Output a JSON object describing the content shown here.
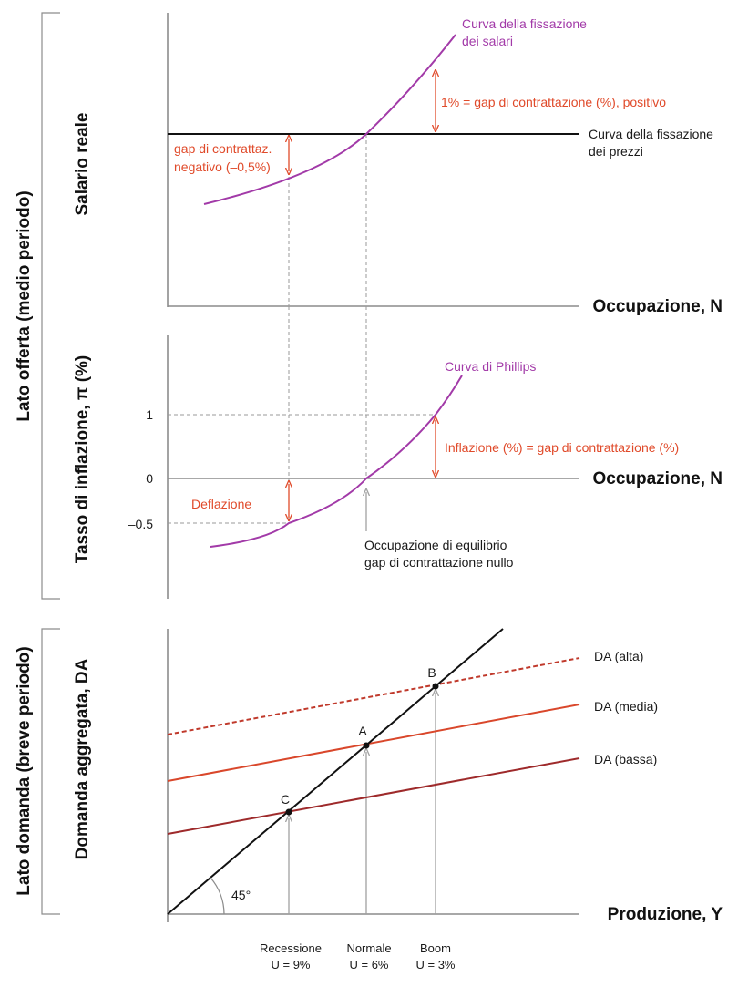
{
  "chart_data": [
    {
      "type": "line",
      "panel": "wage-price-setting",
      "ylabel": "Salario reale",
      "xlabel": "Occupazione, N",
      "series": [
        {
          "name": "Curva della fissazione dei salari",
          "shape": "upward convex curve"
        },
        {
          "name": "Curva della fissazione dei prezzi",
          "shape": "horizontal line"
        }
      ],
      "annotations": {
        "wage_curve": [
          "Curva della fissazione",
          "dei salari"
        ],
        "price_curve": [
          "Curva della fissazione",
          "dei prezzi"
        ],
        "positive_gap": "1% = gap di contrattazione (%), positivo",
        "negative_gap": [
          "gap di contrattaz.",
          "negativo (–0,5%)"
        ]
      }
    },
    {
      "type": "line",
      "panel": "phillips",
      "ylabel": "Tasso di inflazione, π (%)",
      "xlabel": "Occupazione, N",
      "yticks": [
        "1",
        "0",
        "–0.5"
      ],
      "ytick_values": [
        1,
        0,
        -0.5
      ],
      "series": [
        {
          "name": "Curva di Phillips",
          "points": [
            {
              "x": "Recessione",
              "y": -0.5
            },
            {
              "x": "Normale",
              "y": 0
            },
            {
              "x": "Boom",
              "y": 1
            }
          ]
        }
      ],
      "annotations": {
        "curve": "Curva di Phillips",
        "inflation": "Inflazione (%) = gap di contrattazione (%)",
        "deflation": "Deflazione",
        "equilibrium": [
          "Occupazione di equilibrio",
          "gap di contrattazione nullo"
        ]
      }
    },
    {
      "type": "line",
      "panel": "aggregate-demand",
      "ylabel": "Domanda aggregata, DA",
      "xlabel": "Produzione, Y",
      "series": [
        {
          "name": "DA (alta)",
          "style": "dashed"
        },
        {
          "name": "DA (media)",
          "style": "solid"
        },
        {
          "name": "DA (bassa)",
          "style": "solid"
        },
        {
          "name": "45° line",
          "style": "solid"
        }
      ],
      "points": [
        "A",
        "B",
        "C"
      ],
      "angle_label": "45°",
      "categories": [
        {
          "name": "Recessione",
          "u": "U = 9%"
        },
        {
          "name": "Normale",
          "u": "U = 6%"
        },
        {
          "name": "Boom",
          "u": "U = 3%"
        }
      ]
    }
  ],
  "side_labels": {
    "supply": "Lato offerta (medio periodo)",
    "demand": "Lato domanda (breve periodo)"
  },
  "colors": {
    "purple": "#a23aa8",
    "red": "#e04a2a",
    "price_line": "#111111",
    "da_high": "#c0392b",
    "da_mid": "#d9472b",
    "da_low": "#9e2a2b"
  }
}
